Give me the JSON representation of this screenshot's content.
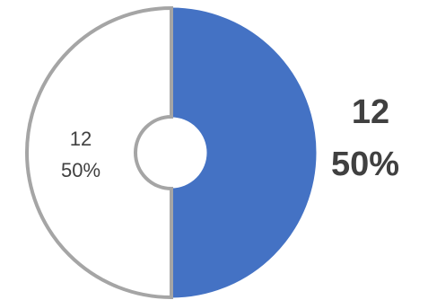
{
  "chart_data": {
    "type": "pie",
    "variant": "donut",
    "slices": [
      {
        "value": 12,
        "value_label": "12",
        "percent_label": "50%",
        "fill": "#4472C4",
        "stroke": "#4472C4"
      },
      {
        "value": 12,
        "value_label": "12",
        "percent_label": "50%",
        "fill": "#FFFFFF",
        "stroke": "#A5A5A5"
      }
    ],
    "label_color": "#404040",
    "legend": "none"
  }
}
